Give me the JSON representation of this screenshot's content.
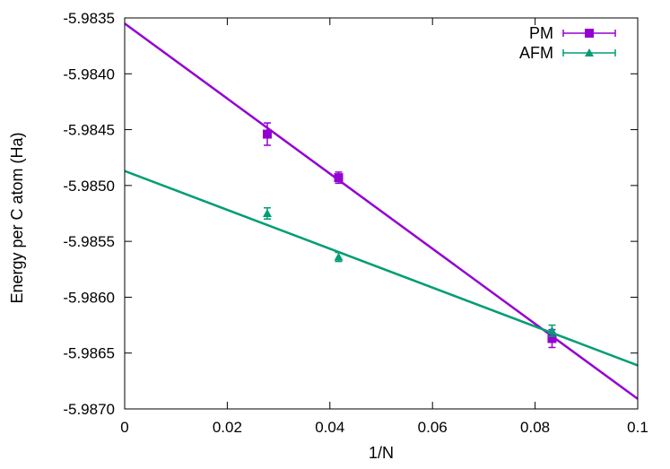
{
  "chart_data": {
    "type": "scatter",
    "xlabel": "1/N",
    "ylabel": "Energy per C atom (Ha)",
    "xlim": [
      0,
      0.1
    ],
    "ylim": [
      -5.987,
      -5.9835
    ],
    "x_ticks": [
      {
        "value": 0,
        "label": "0"
      },
      {
        "value": 0.02,
        "label": "0.02"
      },
      {
        "value": 0.04,
        "label": "0.04"
      },
      {
        "value": 0.06,
        "label": "0.06"
      },
      {
        "value": 0.08,
        "label": "0.08"
      },
      {
        "value": 0.1,
        "label": "0.1"
      }
    ],
    "y_ticks": [
      {
        "value": -5.9835,
        "label": "-5.9835"
      },
      {
        "value": -5.984,
        "label": "-5.9840"
      },
      {
        "value": -5.9845,
        "label": "-5.9845"
      },
      {
        "value": -5.985,
        "label": "-5.9850"
      },
      {
        "value": -5.9855,
        "label": "-5.9855"
      },
      {
        "value": -5.986,
        "label": "-5.9860"
      },
      {
        "value": -5.9865,
        "label": "-5.9865"
      },
      {
        "value": -5.987,
        "label": "-5.9870"
      }
    ],
    "grid": false,
    "legend_position": "top-right",
    "series": [
      {
        "name": "PM",
        "color": "#9400D3",
        "marker": "square",
        "points": [
          {
            "x": 0.0278,
            "y": -5.98454,
            "err": 0.0001
          },
          {
            "x": 0.0417,
            "y": -5.98493,
            "err": 5e-05
          },
          {
            "x": 0.0833,
            "y": -5.98637,
            "err": 8e-05
          }
        ],
        "fit": {
          "x": [
            0,
            0.1
          ],
          "y": [
            -5.98355,
            -5.98691
          ]
        }
      },
      {
        "name": "AFM",
        "color": "#009E73",
        "marker": "triangle",
        "points": [
          {
            "x": 0.0278,
            "y": -5.98525,
            "err": 5e-05
          },
          {
            "x": 0.0417,
            "y": -5.98564,
            "err": 4e-05
          },
          {
            "x": 0.0833,
            "y": -5.9863,
            "err": 5e-05
          }
        ],
        "fit": {
          "x": [
            0,
            0.1
          ],
          "y": [
            -5.98487,
            -5.98661
          ]
        }
      }
    ]
  }
}
